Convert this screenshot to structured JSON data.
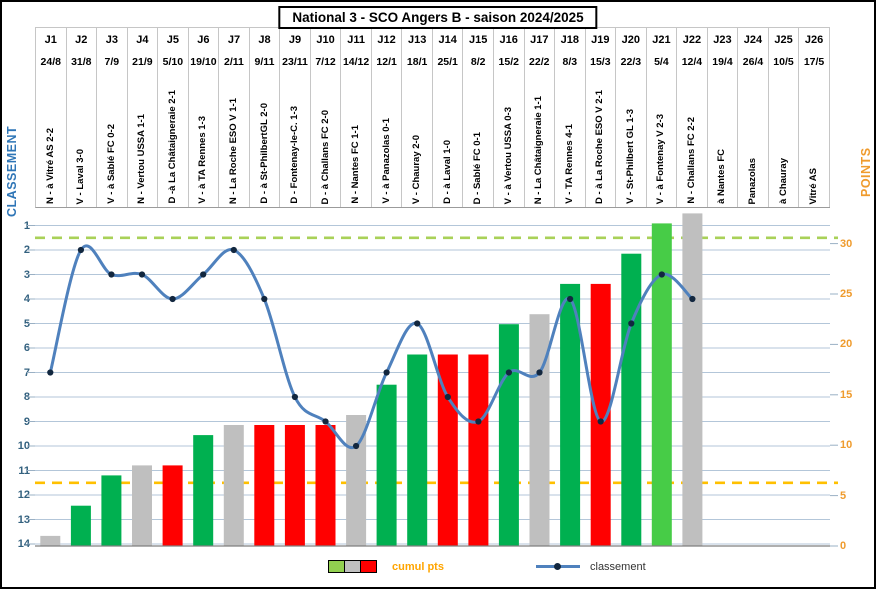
{
  "title": "National 3 - SCO Angers B - saison 2024/2025",
  "axes": {
    "left_title": "CLASSEMENT",
    "right_title": "POINTS",
    "left_ticks": [
      "1",
      "2",
      "3",
      "4",
      "5",
      "6",
      "7",
      "8",
      "9",
      "10",
      "11",
      "12",
      "13",
      "14"
    ],
    "right_ticks": [
      "0",
      "5",
      "10",
      "15",
      "20",
      "25",
      "30"
    ]
  },
  "legend": {
    "bars": "cumul pts",
    "line": "classement"
  },
  "colors": {
    "win": "#00b050",
    "win_light": "#47cc47",
    "draw": "#bfbfbf",
    "loss": "#ff0000",
    "legend_green": "#92d050",
    "line": "#4f81bd",
    "marker": "#12273f",
    "grid": "#b3c6d9",
    "tick": "#9ab0c4",
    "baseline": "#7f7f7f",
    "dash_green": "#a9d158",
    "dash_orange": "#ffc000",
    "left_axis_text": "#2e75b6",
    "rank_text": "#33617f",
    "points_text": "#ef9b2d",
    "legend_bars_text": "#ffa500"
  },
  "chart_data": {
    "type": "combo bar+line",
    "title": "National 3 - SCO Angers B - saison 2024/2025",
    "left_axis": {
      "title": "CLASSEMENT",
      "min": 1,
      "max": 14,
      "inverted": true,
      "series": "classement"
    },
    "right_axis": {
      "title": "POINTS",
      "min": 0,
      "max": 30,
      "step": 5,
      "series": "cumul pts"
    },
    "grid": "horizontal, one line per rank 1-14",
    "legend_position": "bottom",
    "thresholds": [
      {
        "axis": "left",
        "value": 1.5,
        "style": "dashed",
        "color_key": "dash_green"
      },
      {
        "axis": "left",
        "value": 11.5,
        "style": "dashed",
        "color_key": "dash_orange"
      }
    ],
    "matchdays": [
      {
        "j": "J1",
        "date": "24/8",
        "label": "N - à Vitré AS 2-2",
        "result": "draw",
        "cumul_pts": 1,
        "classement": 7
      },
      {
        "j": "J2",
        "date": "31/8",
        "label": "V - Laval 3-0",
        "result": "win",
        "cumul_pts": 4,
        "classement": 2
      },
      {
        "j": "J3",
        "date": "7/9",
        "label": "V - à Sablé FC 0-2",
        "result": "win",
        "cumul_pts": 7,
        "classement": 3
      },
      {
        "j": "J4",
        "date": "21/9",
        "label": "N - Vertou USSA 1-1",
        "result": "draw",
        "cumul_pts": 8,
        "classement": 3
      },
      {
        "j": "J5",
        "date": "5/10",
        "label": "D -à La Châtaigneraie 2-1",
        "result": "loss",
        "cumul_pts": 8,
        "classement": 4
      },
      {
        "j": "J6",
        "date": "19/10",
        "label": "V - à TA Rennes 1-3",
        "result": "win",
        "cumul_pts": 11,
        "classement": 3
      },
      {
        "j": "J7",
        "date": "2/11",
        "label": "N - La Roche ESO V 1-1",
        "result": "draw",
        "cumul_pts": 12,
        "classement": 2
      },
      {
        "j": "J8",
        "date": "9/11",
        "label": "D - à St-PhilbertGL 2-0",
        "result": "loss",
        "cumul_pts": 12,
        "classement": 4
      },
      {
        "j": "J9",
        "date": "23/11",
        "label": "D - Fontenay-le-C. 1-3",
        "result": "loss",
        "cumul_pts": 12,
        "classement": 8
      },
      {
        "j": "J10",
        "date": "7/12",
        "label": "D - à Challans FC 2-0",
        "result": "loss",
        "cumul_pts": 12,
        "classement": 9
      },
      {
        "j": "J11",
        "date": "14/12",
        "label": "N - Nantes FC 1-1",
        "result": "draw",
        "cumul_pts": 13,
        "classement": 10
      },
      {
        "j": "J12",
        "date": "12/1",
        "label": "V - à Panazolas 0-1",
        "result": "win",
        "cumul_pts": 16,
        "classement": 7
      },
      {
        "j": "J13",
        "date": "18/1",
        "label": "V - Chauray 2-0",
        "result": "win",
        "cumul_pts": 19,
        "classement": 5
      },
      {
        "j": "J14",
        "date": "25/1",
        "label": "D - à Laval 1-0",
        "result": "loss",
        "cumul_pts": 19,
        "classement": 8
      },
      {
        "j": "J15",
        "date": "8/2",
        "label": "D - Sablé FC 0-1",
        "result": "loss",
        "cumul_pts": 19,
        "classement": 9
      },
      {
        "j": "J16",
        "date": "15/2",
        "label": "V - à Vertou USSA 0-3",
        "result": "win",
        "cumul_pts": 22,
        "classement": 7
      },
      {
        "j": "J17",
        "date": "22/2",
        "label": "N - La Châtaigneraie 1-1",
        "result": "draw",
        "cumul_pts": 23,
        "classement": 7
      },
      {
        "j": "J18",
        "date": "8/3",
        "label": "V - TA Rennes 4-1",
        "result": "win",
        "cumul_pts": 26,
        "classement": 4
      },
      {
        "j": "J19",
        "date": "15/3",
        "label": "D - à La Roche ESO V 2-1",
        "result": "loss",
        "cumul_pts": 26,
        "classement": 9
      },
      {
        "j": "J20",
        "date": "22/3",
        "label": "V - St-Philbert GL 1-3",
        "result": "win",
        "cumul_pts": 29,
        "classement": 5
      },
      {
        "j": "J21",
        "date": "5/4",
        "label": "V - à Fontenay V 2-3",
        "result": "win_light",
        "cumul_pts": 32,
        "classement": 3
      },
      {
        "j": "J22",
        "date": "12/4",
        "label": "N - Challans FC 2-2",
        "result": "draw",
        "cumul_pts": 33,
        "classement": 4
      },
      {
        "j": "J23",
        "date": "19/4",
        "label": "à Nantes FC",
        "result": "none",
        "cumul_pts": null,
        "classement": null
      },
      {
        "j": "J24",
        "date": "26/4",
        "label": "Panazolas",
        "result": "none",
        "cumul_pts": null,
        "classement": null
      },
      {
        "j": "J25",
        "date": "10/5",
        "label": "à Chauray",
        "result": "none",
        "cumul_pts": null,
        "classement": null
      },
      {
        "j": "J26",
        "date": "17/5",
        "label": "Vitré AS",
        "result": "none",
        "cumul_pts": null,
        "classement": null
      }
    ]
  }
}
